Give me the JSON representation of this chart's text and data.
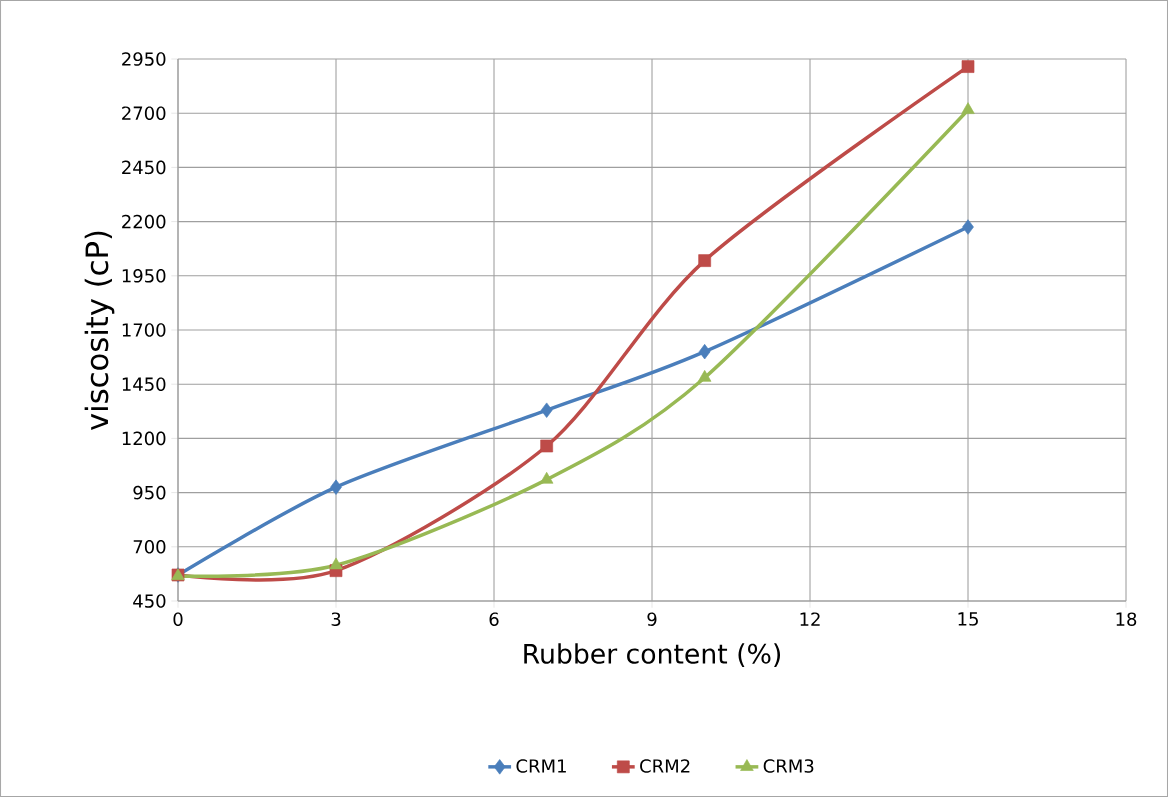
{
  "chart_data": {
    "type": "line",
    "xlabel": "Rubber content (%)",
    "ylabel": "viscosity (cP)",
    "x": [
      0,
      3,
      7,
      10,
      15
    ],
    "xlim": [
      0,
      18
    ],
    "xticks": [
      0,
      3,
      6,
      9,
      12,
      15,
      18
    ],
    "ylim": [
      450,
      2950
    ],
    "yticks": [
      450,
      700,
      950,
      1200,
      1450,
      1700,
      1950,
      2200,
      2450,
      2700,
      2950
    ],
    "grid": true,
    "legend": "bottom",
    "series": [
      {
        "name": "CRM1",
        "color": "#4a7ebb",
        "marker": "diamond",
        "values": [
          570,
          975,
          1330,
          1600,
          2175
        ]
      },
      {
        "name": "CRM2",
        "color": "#be4b48",
        "marker": "square",
        "values": [
          570,
          590,
          1165,
          2020,
          2915
        ]
      },
      {
        "name": "CRM3",
        "color": "#98b954",
        "marker": "triangle",
        "values": [
          565,
          615,
          1010,
          1480,
          2715
        ]
      }
    ]
  }
}
